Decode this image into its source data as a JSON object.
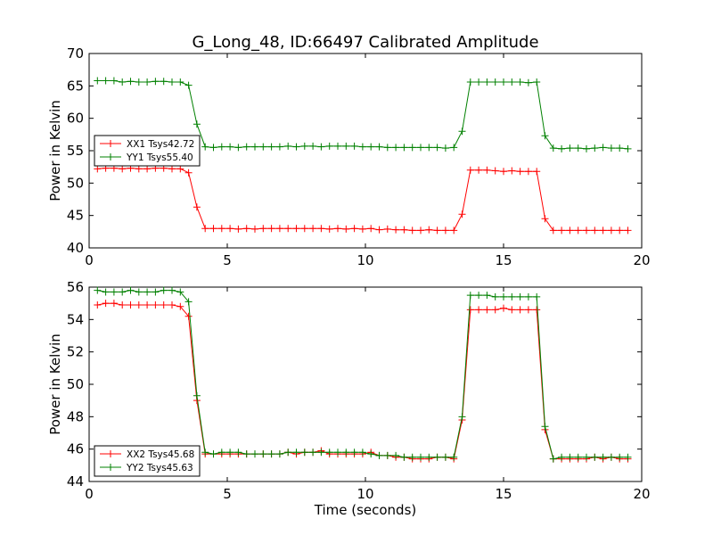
{
  "title": "G_Long_48, ID:66497 Calibrated Amplitude",
  "colors": {
    "xx": "#ff0000",
    "yy": "#008000"
  },
  "chart_data": [
    {
      "type": "line",
      "marker": "plus",
      "ylabel": "Power in Kelvin",
      "xlabel": "",
      "xlim": [
        0,
        20
      ],
      "ylim": [
        40,
        70
      ],
      "xticks": [
        "0",
        "5",
        "10",
        "15",
        "20"
      ],
      "yticks": [
        "40",
        "45",
        "50",
        "55",
        "60",
        "65",
        "70"
      ],
      "legend_position": "center-left",
      "x": [
        0.3,
        0.6,
        0.9,
        1.2,
        1.5,
        1.8,
        2.1,
        2.4,
        2.7,
        3.0,
        3.3,
        3.6,
        3.9,
        4.2,
        4.5,
        4.8,
        5.1,
        5.4,
        5.7,
        6.0,
        6.3,
        6.6,
        6.9,
        7.2,
        7.5,
        7.8,
        8.1,
        8.4,
        8.7,
        9.0,
        9.3,
        9.6,
        9.9,
        10.2,
        10.5,
        10.8,
        11.1,
        11.4,
        11.7,
        12.0,
        12.3,
        12.6,
        12.9,
        13.2,
        13.5,
        13.8,
        14.1,
        14.4,
        14.7,
        15.0,
        15.3,
        15.6,
        15.9,
        16.2,
        16.5,
        16.8,
        17.1,
        17.4,
        17.7,
        18.0,
        18.3,
        18.6,
        18.9,
        19.2,
        19.5
      ],
      "series": [
        {
          "name": "XX1 Tsys42.72",
          "color": "#ff0000",
          "values": [
            52.2,
            52.3,
            52.3,
            52.2,
            52.3,
            52.2,
            52.2,
            52.3,
            52.3,
            52.2,
            52.2,
            51.6,
            46.3,
            43.0,
            43.0,
            43.0,
            43.0,
            42.9,
            43.0,
            42.9,
            43.0,
            43.0,
            43.0,
            43.0,
            43.0,
            43.0,
            43.0,
            43.0,
            42.9,
            43.0,
            42.9,
            43.0,
            42.9,
            43.0,
            42.8,
            42.9,
            42.8,
            42.8,
            42.7,
            42.7,
            42.8,
            42.7,
            42.7,
            42.7,
            45.2,
            52.0,
            52.0,
            52.0,
            51.9,
            51.8,
            51.9,
            51.8,
            51.8,
            51.8,
            44.5,
            42.7,
            42.7,
            42.7,
            42.7,
            42.7,
            42.7,
            42.7,
            42.7,
            42.7,
            42.7
          ]
        },
        {
          "name": "YY1 Tsys55.40",
          "color": "#008000",
          "values": [
            65.8,
            65.8,
            65.8,
            65.6,
            65.7,
            65.6,
            65.6,
            65.7,
            65.7,
            65.6,
            65.6,
            65.1,
            59.1,
            55.6,
            55.5,
            55.6,
            55.6,
            55.5,
            55.6,
            55.6,
            55.6,
            55.6,
            55.6,
            55.7,
            55.6,
            55.7,
            55.7,
            55.6,
            55.7,
            55.7,
            55.7,
            55.7,
            55.6,
            55.6,
            55.6,
            55.5,
            55.5,
            55.5,
            55.5,
            55.5,
            55.5,
            55.5,
            55.4,
            55.5,
            58.0,
            65.6,
            65.6,
            65.6,
            65.6,
            65.6,
            65.6,
            65.6,
            65.5,
            65.6,
            57.3,
            55.4,
            55.3,
            55.4,
            55.4,
            55.3,
            55.4,
            55.5,
            55.4,
            55.4,
            55.3
          ]
        }
      ]
    },
    {
      "type": "line",
      "marker": "plus",
      "ylabel": "Power in Kelvin",
      "xlabel": "Time (seconds)",
      "xlim": [
        0,
        20
      ],
      "ylim": [
        44,
        56
      ],
      "xticks": [
        "0",
        "5",
        "10",
        "15",
        "20"
      ],
      "yticks": [
        "44",
        "46",
        "48",
        "50",
        "52",
        "54",
        "56"
      ],
      "legend_position": "lower-left",
      "x": [
        0.3,
        0.6,
        0.9,
        1.2,
        1.5,
        1.8,
        2.1,
        2.4,
        2.7,
        3.0,
        3.3,
        3.6,
        3.9,
        4.2,
        4.5,
        4.8,
        5.1,
        5.4,
        5.7,
        6.0,
        6.3,
        6.6,
        6.9,
        7.2,
        7.5,
        7.8,
        8.1,
        8.4,
        8.7,
        9.0,
        9.3,
        9.6,
        9.9,
        10.2,
        10.5,
        10.8,
        11.1,
        11.4,
        11.7,
        12.0,
        12.3,
        12.6,
        12.9,
        13.2,
        13.5,
        13.8,
        14.1,
        14.4,
        14.7,
        15.0,
        15.3,
        15.6,
        15.9,
        16.2,
        16.5,
        16.8,
        17.1,
        17.4,
        17.7,
        18.0,
        18.3,
        18.6,
        18.9,
        19.2,
        19.5
      ],
      "series": [
        {
          "name": "XX2 Tsys45.68",
          "color": "#ff0000",
          "values": [
            54.9,
            55.0,
            55.0,
            54.9,
            54.9,
            54.9,
            54.9,
            54.9,
            54.9,
            54.9,
            54.8,
            54.2,
            49.0,
            45.7,
            45.7,
            45.7,
            45.7,
            45.7,
            45.7,
            45.7,
            45.7,
            45.7,
            45.7,
            45.8,
            45.7,
            45.8,
            45.8,
            45.9,
            45.7,
            45.7,
            45.7,
            45.7,
            45.7,
            45.8,
            45.6,
            45.6,
            45.5,
            45.5,
            45.4,
            45.4,
            45.4,
            45.5,
            45.5,
            45.4,
            47.8,
            54.6,
            54.6,
            54.6,
            54.6,
            54.7,
            54.6,
            54.6,
            54.6,
            54.6,
            47.2,
            45.4,
            45.4,
            45.4,
            45.4,
            45.4,
            45.5,
            45.4,
            45.5,
            45.4,
            45.4
          ]
        },
        {
          "name": "YY2 Tsys45.63",
          "color": "#008000",
          "values": [
            55.8,
            55.7,
            55.7,
            55.7,
            55.8,
            55.7,
            55.7,
            55.7,
            55.8,
            55.8,
            55.7,
            55.1,
            49.3,
            45.8,
            45.7,
            45.8,
            45.8,
            45.8,
            45.7,
            45.7,
            45.7,
            45.7,
            45.7,
            45.8,
            45.8,
            45.8,
            45.8,
            45.8,
            45.8,
            45.8,
            45.8,
            45.8,
            45.8,
            45.7,
            45.6,
            45.6,
            45.6,
            45.5,
            45.5,
            45.5,
            45.5,
            45.5,
            45.5,
            45.5,
            48.0,
            55.5,
            55.5,
            55.5,
            55.4,
            55.4,
            55.4,
            55.4,
            55.4,
            55.4,
            47.4,
            45.4,
            45.5,
            45.5,
            45.5,
            45.5,
            45.5,
            45.5,
            45.5,
            45.5,
            45.5
          ]
        }
      ]
    }
  ]
}
